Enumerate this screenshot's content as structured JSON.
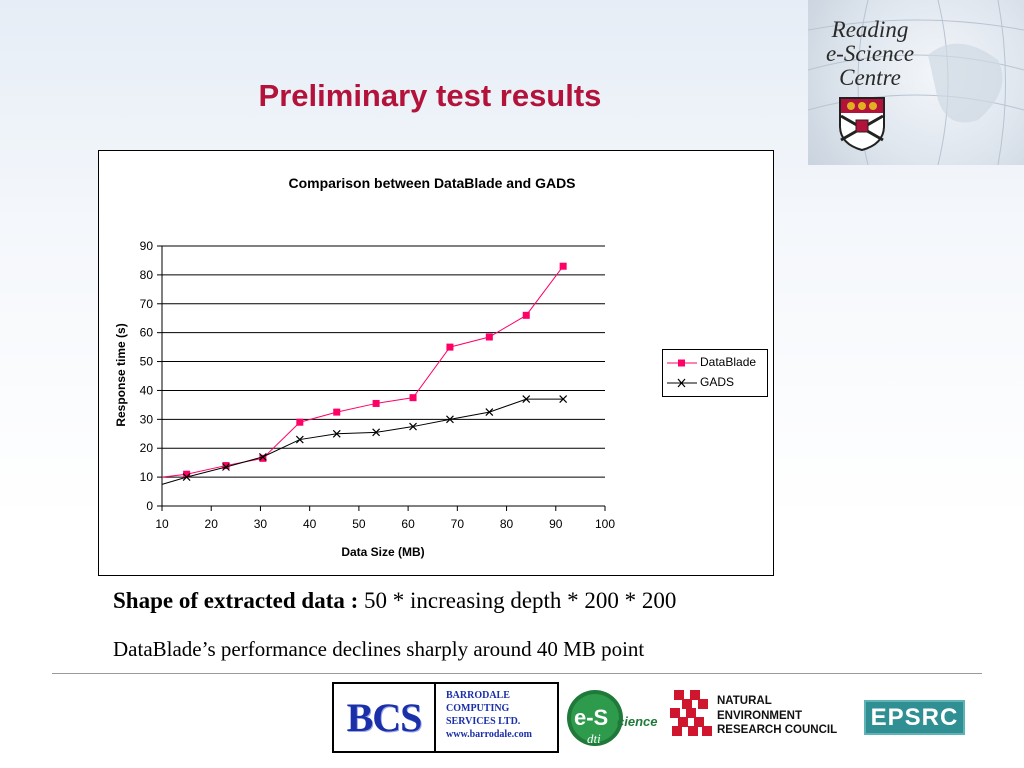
{
  "slide": {
    "title": "Preliminary test results",
    "shape_label": "Shape of extracted data :",
    "shape_value": " 50 * increasing depth * 200 * 200",
    "performance_note": "DataBlade’s performance declines sharply around 40 MB point"
  },
  "logo_reading": {
    "line1": "Reading",
    "line2": "e-Science",
    "line3": "Centre"
  },
  "footer": {
    "bcs_mark": "BCS",
    "bcs_line1": "BARRODALE",
    "bcs_line2": "COMPUTING",
    "bcs_line3": "SERVICES LTD.",
    "bcs_url": "www.barrodale.com",
    "escience_e": "e-S",
    "escience_rest": "cience",
    "escience_dti": "dti",
    "nerc_line1": "NATURAL",
    "nerc_line2": "ENVIRONMENT",
    "nerc_line3": "RESEARCH COUNCIL",
    "epsrc": "EPSRC"
  },
  "chart_data": {
    "type": "line",
    "title": "Comparison between DataBlade and GADS",
    "xlabel": "Data Size (MB)",
    "ylabel": "Response time (s)",
    "xlim": [
      10,
      100
    ],
    "ylim": [
      0,
      90
    ],
    "xticks": [
      10,
      20,
      30,
      40,
      50,
      60,
      70,
      80,
      90,
      100
    ],
    "yticks": [
      0,
      10,
      20,
      30,
      40,
      50,
      60,
      70,
      80,
      90
    ],
    "grid": "horizontal",
    "legend_position": "right",
    "series": [
      {
        "name": "DataBlade",
        "color": "#ff0066",
        "marker": "square",
        "x": [
          10,
          15,
          23,
          30.5,
          38,
          45.5,
          53.5,
          61,
          68.5,
          76.5,
          84,
          91.5
        ],
        "y": [
          10,
          11,
          14,
          16.5,
          29,
          32.5,
          35.5,
          37.5,
          55,
          58.5,
          66,
          83
        ]
      },
      {
        "name": "GADS",
        "color": "#000000",
        "marker": "x",
        "x": [
          10,
          15,
          23,
          30.5,
          38,
          45.5,
          53.5,
          61,
          68.5,
          76.5,
          84,
          91.5
        ],
        "y": [
          7.5,
          10,
          13.5,
          17,
          23,
          25,
          25.5,
          27.5,
          30,
          32.5,
          37,
          37
        ]
      }
    ]
  }
}
